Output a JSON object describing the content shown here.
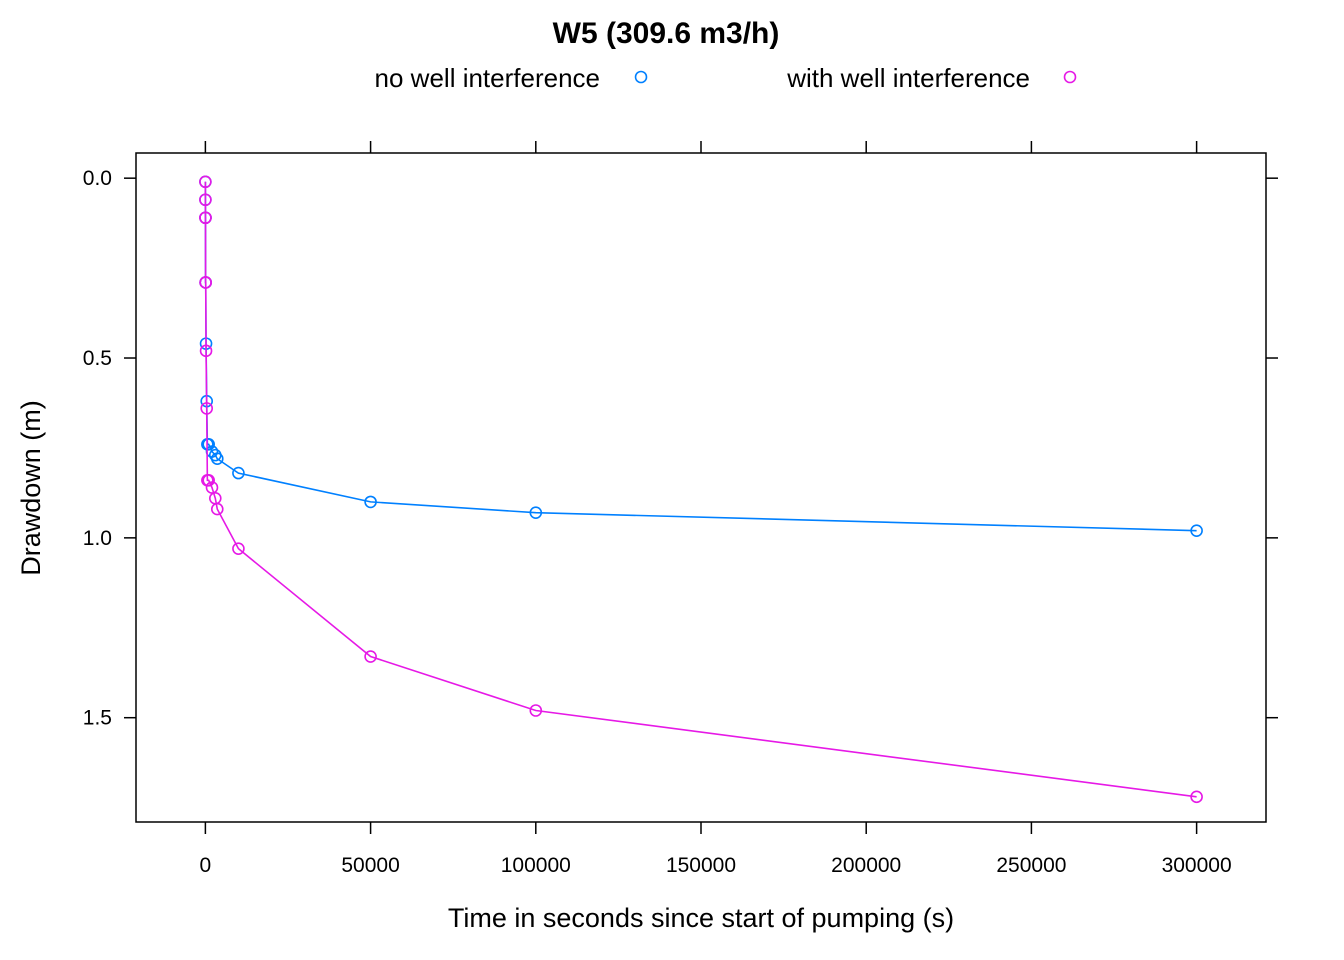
{
  "chart_data": {
    "type": "line",
    "title": "W5 (309.6 m3/h)",
    "xlabel": "Time in seconds since start of pumping (s)",
    "ylabel": "Drawdown (m)",
    "xlim": [
      -21000,
      321000
    ],
    "ylim": [
      1.79,
      -0.07
    ],
    "y_reversed": true,
    "xticks": [
      0,
      50000,
      100000,
      150000,
      200000,
      250000,
      300000
    ],
    "yticks": [
      0.0,
      0.5,
      1.0,
      1.5
    ],
    "ytick_labels": [
      "0.0",
      "0.5",
      "1.0",
      "1.5"
    ],
    "legend_position": "top",
    "grid": false,
    "series": [
      {
        "name": "no well interference",
        "color": "#0080ff",
        "points": [
          [
            1,
            0.01
          ],
          [
            10,
            0.06
          ],
          [
            20,
            0.11
          ],
          [
            30,
            0.11
          ],
          [
            60,
            0.29
          ],
          [
            100,
            0.29
          ],
          [
            200,
            0.46
          ],
          [
            400,
            0.62
          ],
          [
            600,
            0.74
          ],
          [
            1000,
            0.74
          ],
          [
            2000,
            0.76
          ],
          [
            3000,
            0.77
          ],
          [
            3600,
            0.78
          ],
          [
            10000,
            0.82
          ],
          [
            50000,
            0.9
          ],
          [
            100000,
            0.93
          ],
          [
            300000,
            0.98
          ]
        ]
      },
      {
        "name": "with well interference",
        "color": "#e619e6",
        "points": [
          [
            1,
            0.01
          ],
          [
            10,
            0.06
          ],
          [
            20,
            0.11
          ],
          [
            30,
            0.11
          ],
          [
            60,
            0.29
          ],
          [
            100,
            0.29
          ],
          [
            200,
            0.48
          ],
          [
            400,
            0.64
          ],
          [
            600,
            0.84
          ],
          [
            1000,
            0.84
          ],
          [
            2000,
            0.86
          ],
          [
            3000,
            0.89
          ],
          [
            3600,
            0.92
          ],
          [
            10000,
            1.03
          ],
          [
            50000,
            1.33
          ],
          [
            100000,
            1.48
          ],
          [
            300000,
            1.72
          ]
        ]
      }
    ]
  }
}
